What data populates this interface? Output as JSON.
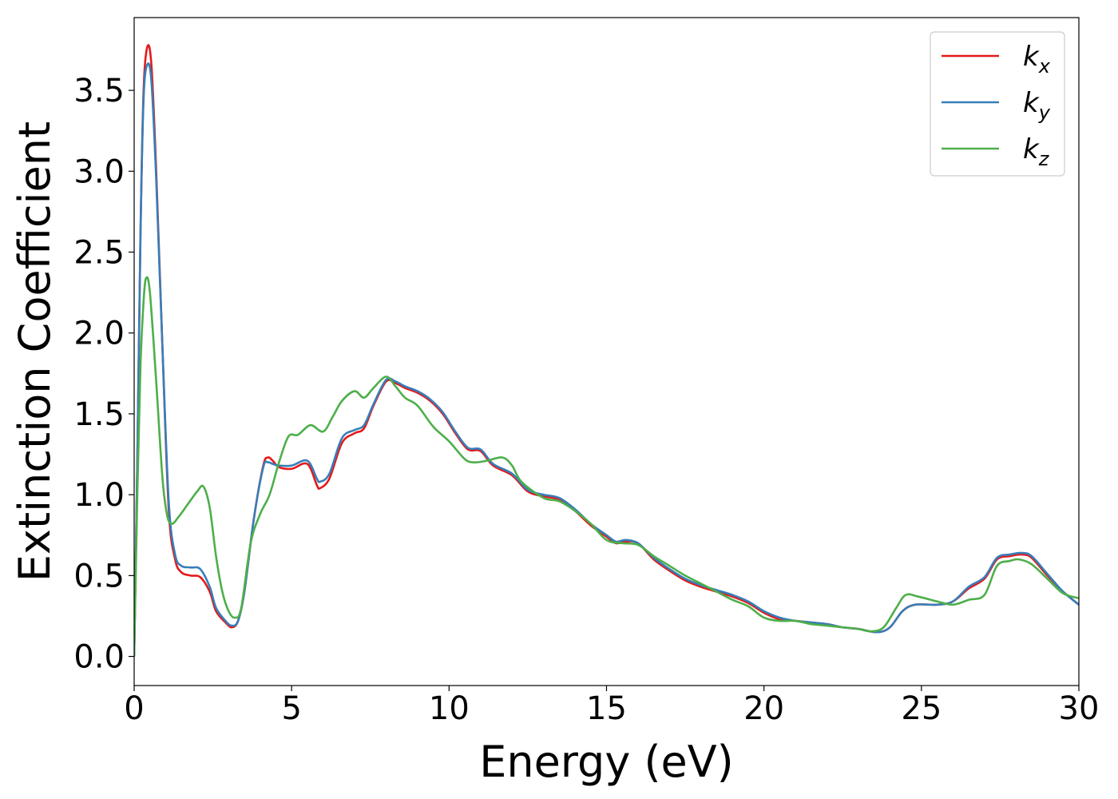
{
  "chart_data": {
    "type": "line",
    "title": "",
    "xlabel": "Energy (eV)",
    "ylabel": "Extinction Coefficient",
    "xlim": [
      0,
      30
    ],
    "ylim": [
      -0.18,
      3.95
    ],
    "xticks": [
      0,
      5,
      10,
      15,
      20,
      25,
      30
    ],
    "xtick_labels": [
      "0",
      "5",
      "10",
      "15",
      "20",
      "25",
      "30"
    ],
    "yticks": [
      0.0,
      0.5,
      1.0,
      1.5,
      2.0,
      2.5,
      3.0,
      3.5
    ],
    "ytick_labels": [
      "0.0",
      "0.5",
      "1.0",
      "1.5",
      "2.0",
      "2.5",
      "3.0",
      "3.5"
    ],
    "grid": false,
    "legend": {
      "position": "top-right"
    },
    "series": [
      {
        "name": "k_x",
        "label_main": "k",
        "label_sub": "x",
        "color": "#e41a1c",
        "points": [
          [
            0,
            0
          ],
          [
            0.1,
            1.2
          ],
          [
            0.2,
            2.6
          ],
          [
            0.3,
            3.5
          ],
          [
            0.42,
            3.77
          ],
          [
            0.55,
            3.65
          ],
          [
            0.7,
            3.0
          ],
          [
            0.9,
            1.9
          ],
          [
            1.1,
            0.9
          ],
          [
            1.3,
            0.6
          ],
          [
            1.5,
            0.52
          ],
          [
            1.8,
            0.5
          ],
          [
            2.1,
            0.49
          ],
          [
            2.4,
            0.4
          ],
          [
            2.6,
            0.28
          ],
          [
            2.9,
            0.21
          ],
          [
            3.1,
            0.18
          ],
          [
            3.3,
            0.22
          ],
          [
            3.5,
            0.4
          ],
          [
            3.8,
            0.85
          ],
          [
            4.1,
            1.18
          ],
          [
            4.25,
            1.23
          ],
          [
            4.4,
            1.21
          ],
          [
            4.6,
            1.17
          ],
          [
            5.0,
            1.16
          ],
          [
            5.5,
            1.19
          ],
          [
            5.8,
            1.06
          ],
          [
            5.9,
            1.04
          ],
          [
            6.2,
            1.1
          ],
          [
            6.6,
            1.32
          ],
          [
            7.0,
            1.38
          ],
          [
            7.3,
            1.41
          ],
          [
            7.6,
            1.55
          ],
          [
            8.0,
            1.7
          ],
          [
            8.3,
            1.69
          ],
          [
            8.6,
            1.66
          ],
          [
            9.0,
            1.63
          ],
          [
            9.4,
            1.58
          ],
          [
            9.8,
            1.5
          ],
          [
            10.2,
            1.38
          ],
          [
            10.6,
            1.28
          ],
          [
            11.0,
            1.27
          ],
          [
            11.4,
            1.18
          ],
          [
            12.0,
            1.12
          ],
          [
            12.5,
            1.02
          ],
          [
            13.0,
            0.99
          ],
          [
            13.5,
            0.97
          ],
          [
            14.0,
            0.9
          ],
          [
            14.5,
            0.81
          ],
          [
            15.0,
            0.74
          ],
          [
            15.3,
            0.7
          ],
          [
            15.6,
            0.71
          ],
          [
            16.0,
            0.7
          ],
          [
            16.5,
            0.6
          ],
          [
            17.0,
            0.53
          ],
          [
            17.5,
            0.47
          ],
          [
            18.0,
            0.43
          ],
          [
            18.5,
            0.4
          ],
          [
            19.0,
            0.37
          ],
          [
            19.5,
            0.33
          ],
          [
            20.0,
            0.27
          ],
          [
            20.5,
            0.23
          ],
          [
            21.0,
            0.22
          ],
          [
            21.5,
            0.21
          ],
          [
            22.0,
            0.2
          ],
          [
            22.5,
            0.18
          ],
          [
            23.0,
            0.17
          ],
          [
            23.6,
            0.15
          ],
          [
            24.0,
            0.18
          ],
          [
            24.4,
            0.28
          ],
          [
            24.8,
            0.32
          ],
          [
            25.5,
            0.32
          ],
          [
            26.0,
            0.34
          ],
          [
            26.5,
            0.42
          ],
          [
            27.0,
            0.48
          ],
          [
            27.4,
            0.6
          ],
          [
            27.8,
            0.62
          ],
          [
            28.2,
            0.63
          ],
          [
            28.5,
            0.61
          ],
          [
            29.0,
            0.5
          ],
          [
            29.5,
            0.4
          ],
          [
            30.0,
            0.32
          ]
        ]
      },
      {
        "name": "k_y",
        "label_main": "k",
        "label_sub": "y",
        "color": "#377eb8",
        "points": [
          [
            0,
            0
          ],
          [
            0.1,
            1.2
          ],
          [
            0.2,
            2.6
          ],
          [
            0.3,
            3.45
          ],
          [
            0.42,
            3.66
          ],
          [
            0.55,
            3.55
          ],
          [
            0.7,
            2.95
          ],
          [
            0.9,
            1.9
          ],
          [
            1.1,
            0.95
          ],
          [
            1.3,
            0.63
          ],
          [
            1.5,
            0.56
          ],
          [
            1.8,
            0.55
          ],
          [
            2.1,
            0.54
          ],
          [
            2.4,
            0.43
          ],
          [
            2.6,
            0.3
          ],
          [
            2.9,
            0.22
          ],
          [
            3.1,
            0.19
          ],
          [
            3.3,
            0.22
          ],
          [
            3.5,
            0.4
          ],
          [
            3.8,
            0.85
          ],
          [
            4.1,
            1.17
          ],
          [
            4.25,
            1.2
          ],
          [
            4.4,
            1.19
          ],
          [
            4.6,
            1.18
          ],
          [
            5.0,
            1.18
          ],
          [
            5.5,
            1.21
          ],
          [
            5.8,
            1.1
          ],
          [
            5.9,
            1.08
          ],
          [
            6.2,
            1.13
          ],
          [
            6.6,
            1.35
          ],
          [
            7.0,
            1.4
          ],
          [
            7.3,
            1.43
          ],
          [
            7.6,
            1.56
          ],
          [
            8.0,
            1.71
          ],
          [
            8.3,
            1.7
          ],
          [
            8.6,
            1.67
          ],
          [
            9.0,
            1.64
          ],
          [
            9.4,
            1.59
          ],
          [
            9.8,
            1.51
          ],
          [
            10.2,
            1.39
          ],
          [
            10.6,
            1.29
          ],
          [
            11.0,
            1.28
          ],
          [
            11.4,
            1.19
          ],
          [
            12.0,
            1.13
          ],
          [
            12.5,
            1.03
          ],
          [
            13.0,
            1.0
          ],
          [
            13.5,
            0.98
          ],
          [
            14.0,
            0.91
          ],
          [
            14.5,
            0.82
          ],
          [
            15.0,
            0.75
          ],
          [
            15.3,
            0.71
          ],
          [
            15.6,
            0.72
          ],
          [
            16.0,
            0.7
          ],
          [
            16.5,
            0.61
          ],
          [
            17.0,
            0.54
          ],
          [
            17.5,
            0.48
          ],
          [
            18.0,
            0.44
          ],
          [
            18.5,
            0.41
          ],
          [
            19.0,
            0.38
          ],
          [
            19.5,
            0.34
          ],
          [
            20.0,
            0.28
          ],
          [
            20.5,
            0.24
          ],
          [
            21.0,
            0.22
          ],
          [
            21.5,
            0.21
          ],
          [
            22.0,
            0.2
          ],
          [
            22.5,
            0.18
          ],
          [
            23.0,
            0.17
          ],
          [
            23.6,
            0.15
          ],
          [
            24.0,
            0.18
          ],
          [
            24.4,
            0.28
          ],
          [
            24.8,
            0.32
          ],
          [
            25.5,
            0.32
          ],
          [
            26.0,
            0.34
          ],
          [
            26.5,
            0.43
          ],
          [
            27.0,
            0.49
          ],
          [
            27.4,
            0.61
          ],
          [
            27.8,
            0.63
          ],
          [
            28.2,
            0.64
          ],
          [
            28.5,
            0.62
          ],
          [
            29.0,
            0.51
          ],
          [
            29.5,
            0.4
          ],
          [
            30.0,
            0.32
          ]
        ]
      },
      {
        "name": "k_z",
        "label_main": "k",
        "label_sub": "z",
        "color": "#4daf4a",
        "points": [
          [
            0,
            0
          ],
          [
            0.1,
            1.0
          ],
          [
            0.2,
            1.8
          ],
          [
            0.3,
            2.2
          ],
          [
            0.38,
            2.34
          ],
          [
            0.5,
            2.25
          ],
          [
            0.7,
            1.7
          ],
          [
            0.9,
            1.1
          ],
          [
            1.05,
            0.87
          ],
          [
            1.2,
            0.82
          ],
          [
            1.4,
            0.86
          ],
          [
            1.7,
            0.94
          ],
          [
            2.0,
            1.02
          ],
          [
            2.2,
            1.05
          ],
          [
            2.4,
            0.92
          ],
          [
            2.6,
            0.62
          ],
          [
            2.8,
            0.4
          ],
          [
            3.0,
            0.28
          ],
          [
            3.2,
            0.24
          ],
          [
            3.4,
            0.3
          ],
          [
            3.7,
            0.7
          ],
          [
            4.0,
            0.88
          ],
          [
            4.3,
            1.0
          ],
          [
            4.6,
            1.2
          ],
          [
            4.9,
            1.36
          ],
          [
            5.2,
            1.37
          ],
          [
            5.6,
            1.43
          ],
          [
            6.0,
            1.39
          ],
          [
            6.3,
            1.48
          ],
          [
            6.6,
            1.58
          ],
          [
            7.0,
            1.64
          ],
          [
            7.3,
            1.6
          ],
          [
            7.6,
            1.66
          ],
          [
            8.0,
            1.73
          ],
          [
            8.3,
            1.67
          ],
          [
            8.6,
            1.6
          ],
          [
            9.0,
            1.55
          ],
          [
            9.5,
            1.42
          ],
          [
            10.0,
            1.33
          ],
          [
            10.5,
            1.22
          ],
          [
            10.8,
            1.2
          ],
          [
            11.2,
            1.21
          ],
          [
            11.7,
            1.23
          ],
          [
            12.0,
            1.18
          ],
          [
            12.3,
            1.08
          ],
          [
            13.0,
            0.98
          ],
          [
            13.5,
            0.96
          ],
          [
            14.0,
            0.9
          ],
          [
            14.5,
            0.82
          ],
          [
            15.0,
            0.72
          ],
          [
            15.5,
            0.7
          ],
          [
            16.0,
            0.69
          ],
          [
            16.5,
            0.62
          ],
          [
            17.0,
            0.56
          ],
          [
            17.5,
            0.5
          ],
          [
            18.0,
            0.45
          ],
          [
            18.5,
            0.4
          ],
          [
            19.0,
            0.35
          ],
          [
            19.5,
            0.31
          ],
          [
            20.0,
            0.24
          ],
          [
            20.5,
            0.22
          ],
          [
            21.0,
            0.22
          ],
          [
            21.5,
            0.2
          ],
          [
            22.0,
            0.19
          ],
          [
            22.5,
            0.18
          ],
          [
            23.0,
            0.17
          ],
          [
            23.4,
            0.155
          ],
          [
            23.8,
            0.18
          ],
          [
            24.2,
            0.3
          ],
          [
            24.5,
            0.38
          ],
          [
            24.9,
            0.37
          ],
          [
            25.5,
            0.34
          ],
          [
            26.0,
            0.32
          ],
          [
            26.5,
            0.35
          ],
          [
            27.0,
            0.38
          ],
          [
            27.4,
            0.56
          ],
          [
            27.8,
            0.59
          ],
          [
            28.1,
            0.6
          ],
          [
            28.5,
            0.57
          ],
          [
            29.0,
            0.48
          ],
          [
            29.5,
            0.39
          ],
          [
            30.0,
            0.36
          ]
        ]
      }
    ]
  }
}
